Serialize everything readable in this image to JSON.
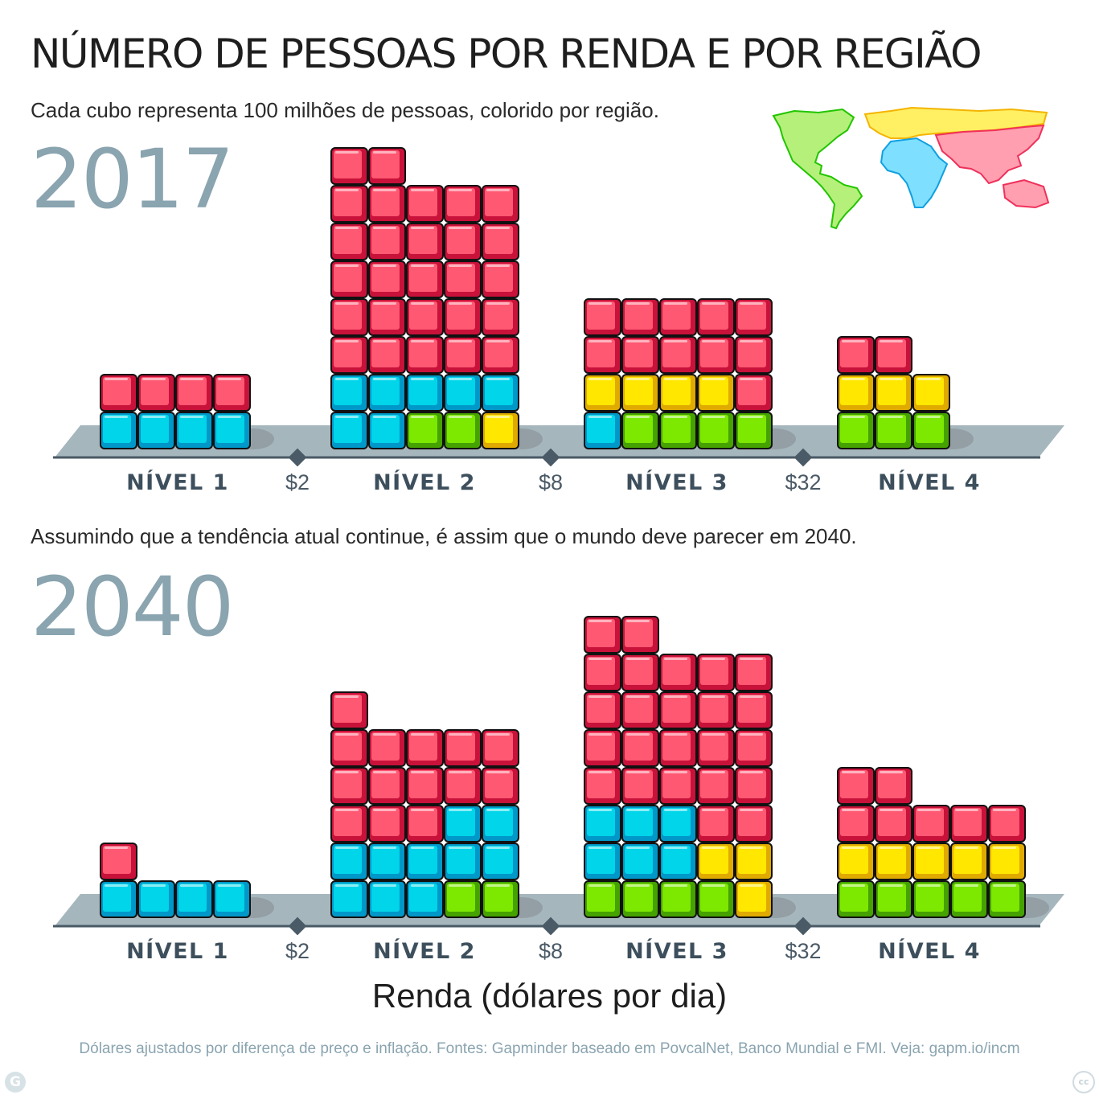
{
  "title": "NÚMERO DE PESSOAS POR RENDA E POR REGIÃO",
  "subtitle": "Cada cubo representa 100 milhões de pessoas, colorido por região.",
  "subtitle2": "Assumindo que a tendência atual continue, é assim que o mundo deve parecer em 2040.",
  "xlabel": "Renda (dólares por dia)",
  "footer": "Dólares ajustados por diferença de preço e inflação. Fontes: Gapminder baseado em PovcalNet, Banco Mundial e FMI. Veja: gapm.io/incm",
  "logo_left": "G",
  "logo_right": "cc",
  "colors": {
    "americas": "#7de800",
    "africa": "#00d5e9",
    "europe": "#ffe700",
    "asia": "#ff5872",
    "floor": "#a6b6bd",
    "axis": "#4a5a66",
    "shadow": "#8e9a9f"
  },
  "chart_data": {
    "type": "waffle",
    "unit": "100 milhões de pessoas por cubo",
    "levels": [
      "NÍVEL 1",
      "NÍVEL 2",
      "NÍVEL 3",
      "NÍVEL 4"
    ],
    "thresholds": [
      "$2",
      "$8",
      "$32"
    ],
    "regions": [
      "americas",
      "africa",
      "europe",
      "asia"
    ],
    "panels": [
      {
        "year": "2017",
        "groups": [
          {
            "level": "NÍVEL 1",
            "columns": [
              [
                "africa",
                "asia"
              ],
              [
                "africa",
                "asia"
              ],
              [
                "africa",
                "asia"
              ],
              [
                "africa",
                "asia"
              ]
            ]
          },
          {
            "level": "NÍVEL 2",
            "columns": [
              [
                "africa",
                "africa",
                "asia",
                "asia",
                "asia",
                "asia",
                "asia",
                "asia"
              ],
              [
                "africa",
                "africa",
                "asia",
                "asia",
                "asia",
                "asia",
                "asia",
                "asia"
              ],
              [
                "americas",
                "africa",
                "asia",
                "asia",
                "asia",
                "asia",
                "asia"
              ],
              [
                "americas",
                "africa",
                "asia",
                "asia",
                "asia",
                "asia",
                "asia"
              ],
              [
                "europe",
                "africa",
                "asia",
                "asia",
                "asia",
                "asia",
                "asia"
              ]
            ]
          },
          {
            "level": "NÍVEL 3",
            "columns": [
              [
                "africa",
                "europe",
                "asia",
                "asia"
              ],
              [
                "americas",
                "europe",
                "asia",
                "asia"
              ],
              [
                "americas",
                "europe",
                "asia",
                "asia"
              ],
              [
                "americas",
                "europe",
                "asia",
                "asia"
              ],
              [
                "americas",
                "asia",
                "asia",
                "asia"
              ]
            ]
          },
          {
            "level": "NÍVEL 4",
            "columns": [
              [
                "americas",
                "europe",
                "asia"
              ],
              [
                "americas",
                "europe",
                "asia"
              ],
              [
                "americas",
                "europe"
              ]
            ]
          }
        ]
      },
      {
        "year": "2040",
        "groups": [
          {
            "level": "NÍVEL 1",
            "columns": [
              [
                "africa",
                "asia"
              ],
              [
                "africa"
              ],
              [
                "africa"
              ],
              [
                "africa"
              ]
            ]
          },
          {
            "level": "NÍVEL 2",
            "columns": [
              [
                "africa",
                "africa",
                "asia",
                "asia",
                "asia",
                "asia"
              ],
              [
                "africa",
                "africa",
                "asia",
                "asia",
                "asia"
              ],
              [
                "africa",
                "africa",
                "asia",
                "asia",
                "asia"
              ],
              [
                "americas",
                "africa",
                "africa",
                "asia",
                "asia"
              ],
              [
                "americas",
                "africa",
                "africa",
                "asia",
                "asia"
              ]
            ]
          },
          {
            "level": "NÍVEL 3",
            "columns": [
              [
                "americas",
                "africa",
                "africa",
                "asia",
                "asia",
                "asia",
                "asia",
                "asia"
              ],
              [
                "americas",
                "africa",
                "africa",
                "asia",
                "asia",
                "asia",
                "asia",
                "asia"
              ],
              [
                "americas",
                "africa",
                "africa",
                "asia",
                "asia",
                "asia",
                "asia"
              ],
              [
                "americas",
                "europe",
                "asia",
                "asia",
                "asia",
                "asia",
                "asia"
              ],
              [
                "europe",
                "europe",
                "asia",
                "asia",
                "asia",
                "asia",
                "asia"
              ]
            ]
          },
          {
            "level": "NÍVEL 4",
            "columns": [
              [
                "americas",
                "europe",
                "asia",
                "asia"
              ],
              [
                "americas",
                "europe",
                "asia",
                "asia"
              ],
              [
                "americas",
                "europe",
                "asia"
              ],
              [
                "americas",
                "europe",
                "asia"
              ],
              [
                "americas",
                "europe",
                "asia"
              ]
            ]
          }
        ]
      }
    ]
  }
}
